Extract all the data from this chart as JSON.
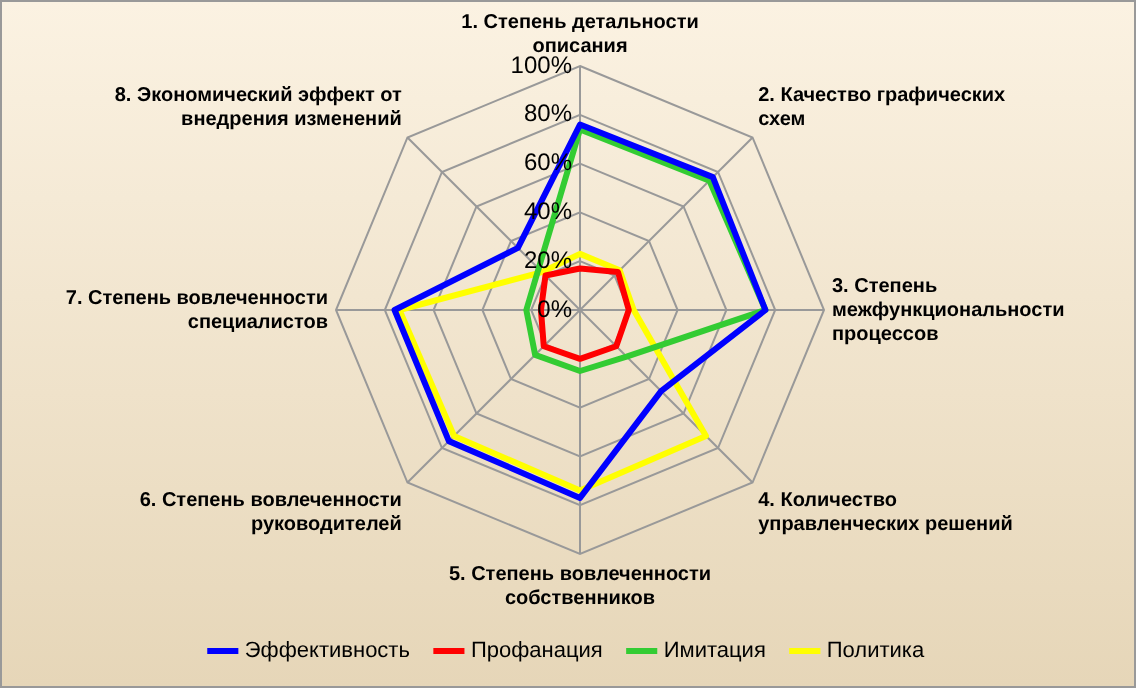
{
  "chart_data": {
    "type": "radar",
    "categories": [
      "1. Степень детальности описания",
      "2. Качество графических схем",
      "3. Степень межфункциональности процессов",
      "4. Количество управленческих решений",
      "5. Степень вовлеченности собственников",
      "6. Степень вовлеченности руководителей",
      "7. Степень вовлеченности специалистов",
      "8. Экономический эффект от внедрения изменений"
    ],
    "series": [
      {
        "name": "Эффективность",
        "color": "#0000ff",
        "values": [
          76,
          77,
          76,
          47,
          77,
          76,
          76,
          36
        ]
      },
      {
        "name": "Профанация",
        "color": "#ff0000",
        "values": [
          17,
          22,
          20,
          21,
          20,
          21,
          16,
          20
        ]
      },
      {
        "name": "Имитация",
        "color": "#33cc33",
        "values": [
          74,
          75,
          76,
          27,
          25,
          26,
          22,
          24
        ]
      },
      {
        "name": "Политика",
        "color": "#ffff00",
        "values": [
          23,
          23,
          22,
          73,
          74,
          73,
          74,
          22
        ]
      }
    ],
    "ylim": [
      0,
      100
    ],
    "yticks": [
      {
        "value": 0,
        "label": "0%"
      },
      {
        "value": 20,
        "label": "20%"
      },
      {
        "value": 40,
        "label": "40%"
      },
      {
        "value": 60,
        "label": "60%"
      },
      {
        "value": 80,
        "label": "80%"
      },
      {
        "value": 100,
        "label": "100%"
      }
    ],
    "grid": true,
    "legend": "bottom",
    "marker": "none",
    "line_style": "solid"
  }
}
